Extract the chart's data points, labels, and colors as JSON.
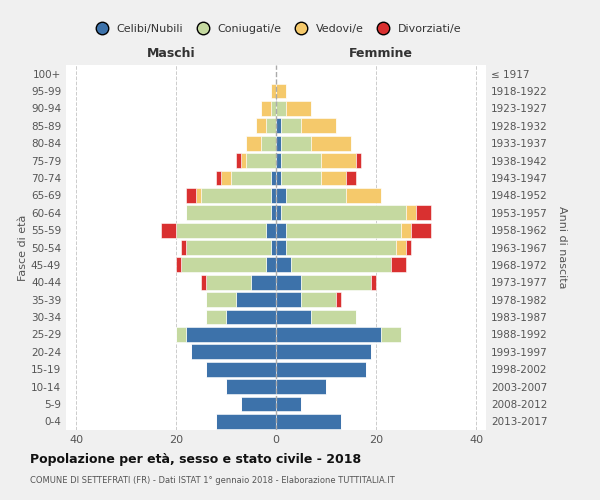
{
  "age_groups": [
    "0-4",
    "5-9",
    "10-14",
    "15-19",
    "20-24",
    "25-29",
    "30-34",
    "35-39",
    "40-44",
    "45-49",
    "50-54",
    "55-59",
    "60-64",
    "65-69",
    "70-74",
    "75-79",
    "80-84",
    "85-89",
    "90-94",
    "95-99",
    "100+"
  ],
  "birth_years": [
    "2013-2017",
    "2008-2012",
    "2003-2007",
    "1998-2002",
    "1993-1997",
    "1988-1992",
    "1983-1987",
    "1978-1982",
    "1973-1977",
    "1968-1972",
    "1963-1967",
    "1958-1962",
    "1953-1957",
    "1948-1952",
    "1943-1947",
    "1938-1942",
    "1933-1937",
    "1928-1932",
    "1923-1927",
    "1918-1922",
    "≤ 1917"
  ],
  "colors": {
    "celibi": "#3d72aa",
    "coniugati": "#c5d9a0",
    "vedovi": "#f5c96b",
    "divorziati": "#d93030"
  },
  "maschi": {
    "celibi": [
      12,
      7,
      10,
      14,
      17,
      18,
      10,
      8,
      5,
      2,
      1,
      2,
      1,
      1,
      1,
      0,
      0,
      0,
      0,
      0,
      0
    ],
    "coniugati": [
      0,
      0,
      0,
      0,
      0,
      2,
      4,
      6,
      9,
      17,
      17,
      18,
      17,
      14,
      8,
      6,
      3,
      2,
      1,
      0,
      0
    ],
    "vedovi": [
      0,
      0,
      0,
      0,
      0,
      0,
      0,
      0,
      0,
      0,
      0,
      0,
      0,
      1,
      2,
      1,
      3,
      2,
      2,
      1,
      0
    ],
    "divorziati": [
      0,
      0,
      0,
      0,
      0,
      0,
      0,
      0,
      1,
      1,
      1,
      3,
      0,
      2,
      1,
      1,
      0,
      0,
      0,
      0,
      0
    ]
  },
  "femmine": {
    "celibi": [
      13,
      5,
      10,
      18,
      19,
      21,
      7,
      5,
      5,
      3,
      2,
      2,
      1,
      2,
      1,
      1,
      1,
      1,
      0,
      0,
      0
    ],
    "coniugati": [
      0,
      0,
      0,
      0,
      0,
      4,
      9,
      7,
      14,
      20,
      22,
      23,
      25,
      12,
      8,
      8,
      6,
      4,
      2,
      0,
      0
    ],
    "vedovi": [
      0,
      0,
      0,
      0,
      0,
      0,
      0,
      0,
      0,
      0,
      2,
      2,
      2,
      7,
      5,
      7,
      8,
      7,
      5,
      2,
      0
    ],
    "divorziati": [
      0,
      0,
      0,
      0,
      0,
      0,
      0,
      1,
      1,
      3,
      1,
      4,
      3,
      0,
      2,
      1,
      0,
      0,
      0,
      0,
      0
    ]
  },
  "xlim": [
    -42,
    42
  ],
  "xticks": [
    -40,
    -20,
    0,
    20,
    40
  ],
  "xticklabels": [
    "40",
    "20",
    "0",
    "20",
    "40"
  ],
  "title": "Popolazione per età, sesso e stato civile - 2018",
  "subtitle": "COMUNE DI SETTEFRATI (FR) - Dati ISTAT 1° gennaio 2018 - Elaborazione TUTTITALIA.IT",
  "ylabel_left": "Fasce di età",
  "ylabel_right": "Anni di nascita",
  "label_maschi": "Maschi",
  "label_femmine": "Femmine",
  "legend_labels": [
    "Celibi/Nubili",
    "Coniugati/e",
    "Vedovi/e",
    "Divorziati/e"
  ],
  "bg_color": "#f0f0f0",
  "plot_bg": "#ffffff"
}
